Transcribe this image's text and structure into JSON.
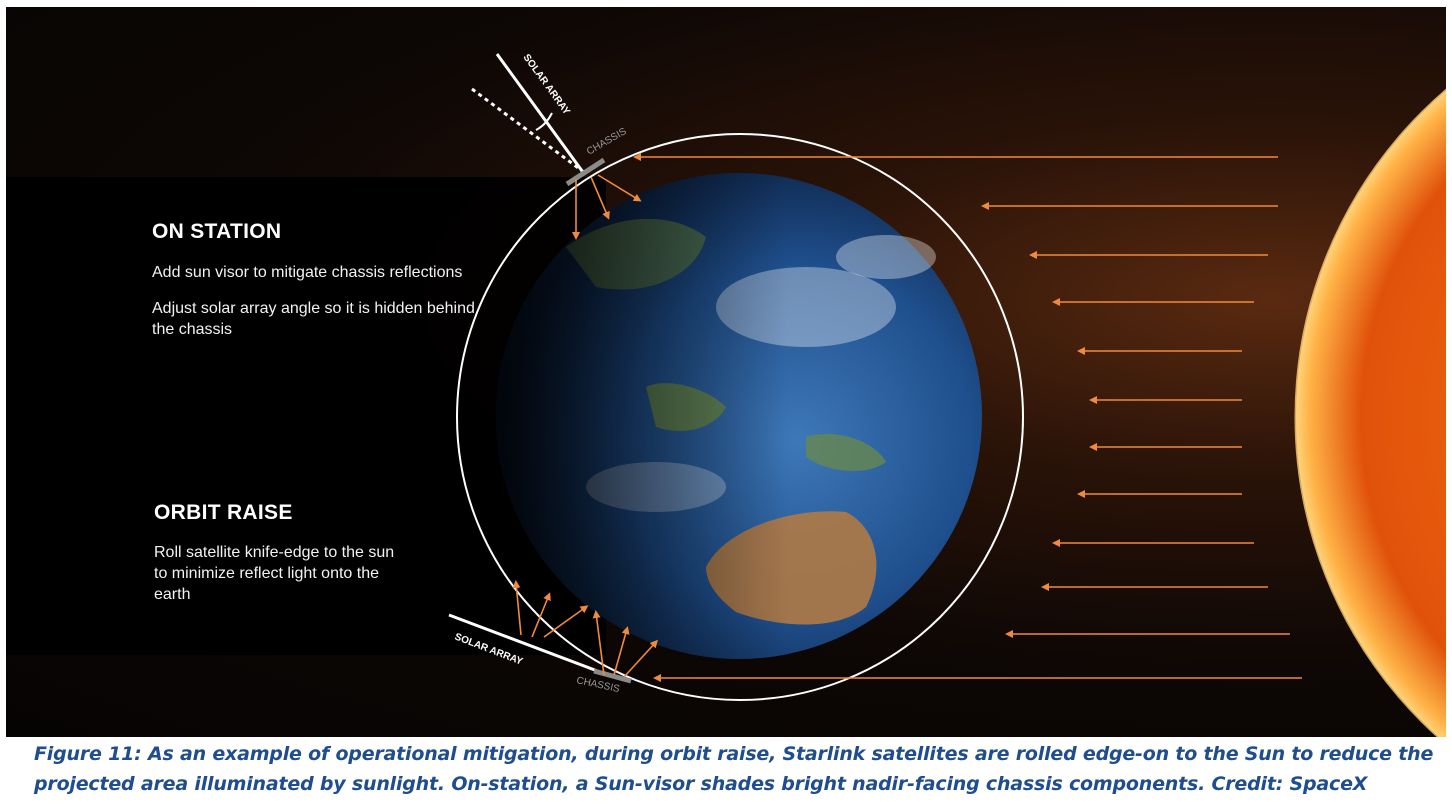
{
  "on_station": {
    "heading": "ON STATION",
    "points": [
      "Add sun visor to mitigate chassis reflections",
      "Adjust solar array angle so it is hidden behind the chassis"
    ]
  },
  "orbit_raise": {
    "heading": "ORBIT RAISE",
    "points": [
      "Roll satellite knife-edge to the sun to minimize reflect light onto the earth"
    ]
  },
  "labels": {
    "solar_array_top": "SOLAR ARRAY",
    "chassis_top": "CHASSIS",
    "solar_array_bottom": "SOLAR ARRAY",
    "chassis_bottom": "CHASSIS"
  },
  "caption": "Figure 11: As an example of operational mitigation, during orbit raise, Starlink satellites are rolled edge-on to the Sun to reduce the projected area illuminated by sunlight. On-station, a Sun-visor shades bright nadir-facing chassis components. Credit: SpaceX",
  "colors": {
    "arrow": "#f08a3c",
    "sun": "#e8590c",
    "caption": "#1f4d8f",
    "orbit": "#ffffff"
  },
  "icons": {
    "earth": "earth-globe",
    "sun": "sun-disc"
  }
}
